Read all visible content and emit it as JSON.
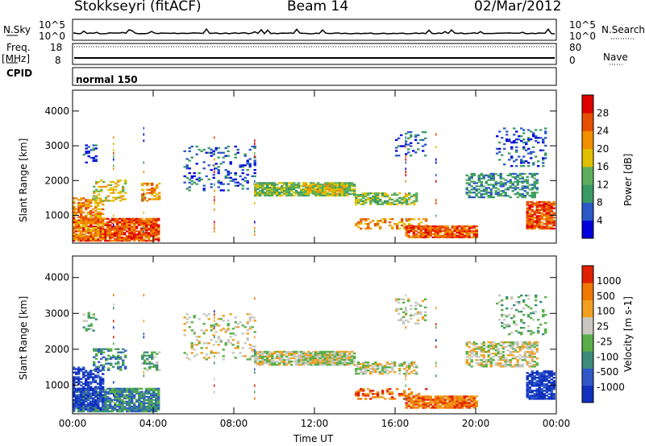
{
  "header": {
    "station": "Stokkseyri (fitACF)",
    "beam": "Beam 14",
    "date": "02/Mar/2012"
  },
  "top_panels": {
    "nsky_label": "N.Sky",
    "nsky_ticks": [
      "10^5",
      "10^0"
    ],
    "nsearch_label": "N.Search",
    "nsearch_ticks": [
      "10^5",
      "10^0"
    ],
    "freq_label": "Freq.",
    "freq_unit": "[MHz]",
    "freq_ticks": [
      "18",
      "8"
    ],
    "nave_label": "Nave",
    "nave_ticks": [
      "80",
      "0"
    ],
    "cpid_label": "CPID",
    "cpid_value": "normal 150"
  },
  "chart_data": [
    {
      "type": "heatmap",
      "panel": "power",
      "ylabel": "Slant Range [km]",
      "yticks": [
        1000,
        2000,
        3000,
        4000
      ],
      "ylim": [
        200,
        4600
      ],
      "xticks": [
        "00:00",
        "04:00",
        "08:00",
        "12:00",
        "16:00",
        "20:00",
        "00:00"
      ],
      "colorbar_label": "Power [dB]",
      "colorbar_ticks": [
        "28",
        "24",
        "20",
        "16",
        "12",
        "8",
        "4"
      ],
      "colors": [
        "#0000dd",
        "#2a5ac8",
        "#3a9a64",
        "#5cb05c",
        "#e0c000",
        "#f29000",
        "#e65000",
        "#e00000"
      ]
    },
    {
      "type": "heatmap",
      "panel": "velocity",
      "ylabel": "Slant Range [km]",
      "yticks": [
        1000,
        2000,
        3000,
        4000
      ],
      "ylim": [
        200,
        4600
      ],
      "xticks": [
        "00:00",
        "04:00",
        "08:00",
        "12:00",
        "16:00",
        "20:00",
        "00:00"
      ],
      "xlabel": "Time UT",
      "colorbar_label": "Velocity [m s-1]",
      "colorbar_ticks": [
        "1000",
        "500",
        "100",
        "25",
        "-25",
        "-100",
        "-500",
        "-1000"
      ],
      "colors": [
        "#1030c0",
        "#2f58c8",
        "#3c8c7c",
        "#58b048",
        "#c8c8c0",
        "#f0a020",
        "#f07800",
        "#e02000"
      ]
    }
  ]
}
